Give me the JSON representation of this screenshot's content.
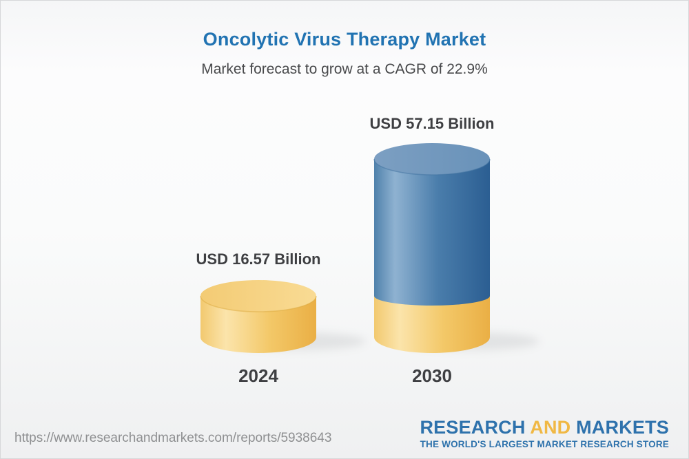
{
  "theme": {
    "title_blue": "#2173b2",
    "text_dark": "#3e3f42",
    "subtitle_gray": "#48494b",
    "url_gray": "#8e8f91",
    "logo_blue": "#2e72ac",
    "logo_gold": "#f0b844",
    "background_top": "#f5f6f7",
    "background_bottom": "#eff0f1"
  },
  "header": {
    "title": "Oncolytic Virus Therapy Market",
    "subtitle": "Market forecast to grow at a CAGR of 22.9%"
  },
  "footer": {
    "url": "https://www.researchandmarkets.com/reports/5938643",
    "logo": {
      "word1": "RESEARCH",
      "word2": "AND",
      "word3": "MARKETS",
      "tagline": "THE WORLD'S LARGEST MARKET RESEARCH STORE"
    }
  },
  "chart_data": {
    "type": "bar",
    "style": "3d-cylinder",
    "title": "Oncolytic Virus Therapy Market",
    "subtitle": "Market forecast to grow at a CAGR of 22.9%",
    "cagr_percent": 22.9,
    "categories": [
      "2024",
      "2030"
    ],
    "values": [
      16.57,
      57.15
    ],
    "value_labels": [
      "USD 16.57 Billion",
      "USD 57.15 Billion"
    ],
    "unit": "USD Billion",
    "legend": "2030 cylinder shows the 2024 base value as a gold segment with forecast growth in blue on top",
    "colors": {
      "yellow_body": [
        "#f2c96f",
        "#fbe4ab",
        "#f3c868",
        "#eaaf45"
      ],
      "yellow_top": [
        "#f3cb74",
        "#f9db94"
      ],
      "yellow_rim": "#dca93f",
      "blue_body": [
        "#4f81ab",
        "#8fb2d1",
        "#4a7dab",
        "#2b5e92"
      ],
      "blue_top": [
        "#7c9fc2",
        "#6992b9"
      ],
      "blue_rim": "#40719f"
    }
  }
}
